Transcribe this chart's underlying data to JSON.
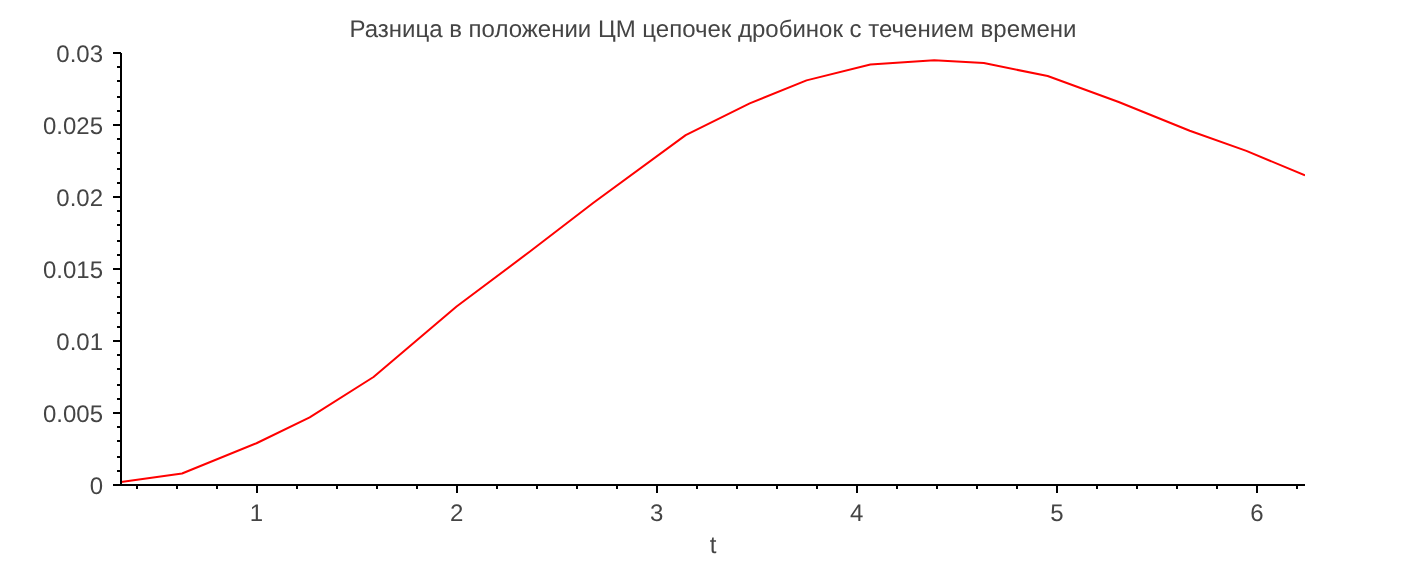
{
  "chart_data": {
    "type": "line",
    "title": "Разница в положении ЦМ цепочек дробинок с течением времени",
    "xlabel": "t",
    "x": [
      0.323,
      0.628,
      1.0,
      1.266,
      1.585,
      2.0,
      2.365,
      2.684,
      3.145,
      3.465,
      3.749,
      4.068,
      4.387,
      4.635,
      4.954,
      5.309,
      5.664,
      5.947,
      6.24
    ],
    "series": [
      {
        "color": "#ff0000",
        "values": [
          0.0002,
          0.0008,
          0.0029,
          0.0047,
          0.0075,
          0.0124,
          0.0162,
          0.0196,
          0.0243,
          0.0265,
          0.0281,
          0.0292,
          0.0295,
          0.0293,
          0.0284,
          0.0266,
          0.0246,
          0.0232,
          0.0215
        ]
      }
    ],
    "xlim": [
      0.323,
      6.24
    ],
    "ylim": [
      0,
      0.03
    ],
    "xticks": [
      1,
      2,
      3,
      4,
      5,
      6
    ],
    "yticks": [
      0,
      0.005,
      0.01,
      0.015,
      0.02,
      0.025,
      0.03
    ],
    "line_style": "solid"
  }
}
